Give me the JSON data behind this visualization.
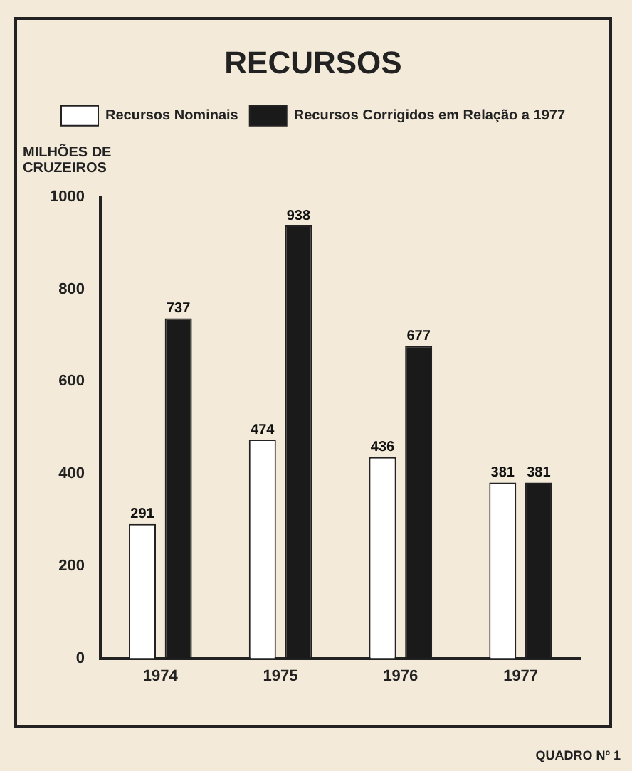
{
  "chart_data": {
    "type": "bar",
    "title": "RECURSOS",
    "ylabel": "MILHÕES DE CRUZEIROS",
    "categories": [
      "1974",
      "1975",
      "1976",
      "1977"
    ],
    "series": [
      {
        "name": "Recursos Nominais",
        "color": "#ffffff",
        "values": [
          291,
          474,
          436,
          381
        ]
      },
      {
        "name": "Recursos Corrigidos em Relação a 1977",
        "color": "#1a1a1a",
        "values": [
          737,
          938,
          677,
          381
        ]
      }
    ],
    "ylim": [
      0,
      1000
    ],
    "yticks": [
      0,
      200,
      400,
      600,
      800,
      1000
    ],
    "grid": false,
    "legend": "top",
    "data_labels": true,
    "annotations": [
      "QUADRO Nº 1"
    ]
  }
}
